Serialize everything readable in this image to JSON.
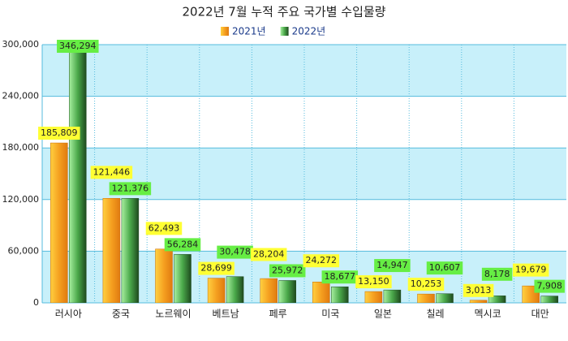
{
  "chart_data": {
    "type": "bar",
    "title": "2022년 7월 누적 주요 국가별 수입물량",
    "categories": [
      "러시아",
      "중국",
      "노르웨이",
      "베트남",
      "페루",
      "미국",
      "일본",
      "칠레",
      "멕시코",
      "대만"
    ],
    "series": [
      {
        "name": "2021년",
        "color": "#f0a020",
        "values": [
          185809,
          121446,
          62493,
          28699,
          28204,
          24272,
          13150,
          10253,
          3013,
          19679
        ],
        "value_labels": [
          "185,809",
          "121,446",
          "62,493",
          "28,699",
          "28,204",
          "24,272",
          "13,150",
          "10,253",
          "3,013",
          "19,679"
        ]
      },
      {
        "name": "2022년",
        "color": "#3c9a3c",
        "values": [
          346294,
          121376,
          56284,
          30478,
          25972,
          18677,
          14947,
          10607,
          8178,
          7908
        ],
        "value_labels": [
          "346,294",
          "121,376",
          "56,284",
          "30,478",
          "25,972",
          "18,677",
          "14,947",
          "10,607",
          "8,178",
          "7,908"
        ]
      }
    ],
    "ylim": [
      0,
      300000
    ],
    "yticks": [
      0,
      {
        "value": 60000,
        "label": "60,000"
      },
      {
        "value": 120000,
        "label": "120,000"
      },
      {
        "value": 180000,
        "label": "180,000"
      },
      {
        "value": 240000,
        "label": "240,000"
      },
      {
        "value": 300000,
        "label": "300,000"
      }
    ],
    "grid": true,
    "legend": "top"
  }
}
